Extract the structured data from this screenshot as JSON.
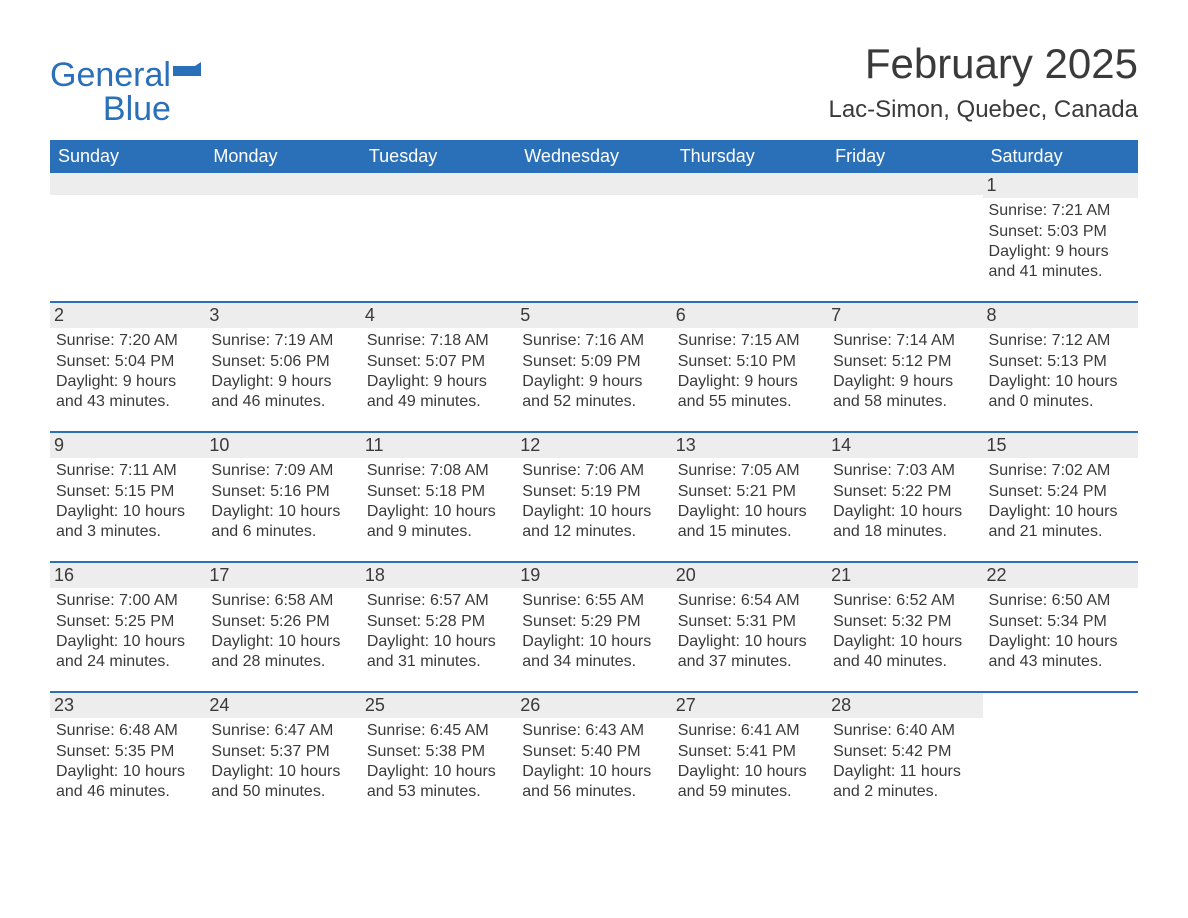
{
  "brand": {
    "line1": "General",
    "line2": "Blue",
    "color": "#2a70b8"
  },
  "title": "February 2025",
  "location": "Lac-Simon, Quebec, Canada",
  "colors": {
    "header_bg": "#2a70b8",
    "header_text": "#ffffff",
    "row_divider": "#2a70b8",
    "daynum_bg": "#ededed",
    "text": "#3a3a3a",
    "background": "#ffffff"
  },
  "fonts": {
    "title_pt": 42,
    "location_pt": 24,
    "dow_pt": 18,
    "body_pt": 16
  },
  "days_of_week": [
    "Sunday",
    "Monday",
    "Tuesday",
    "Wednesday",
    "Thursday",
    "Friday",
    "Saturday"
  ],
  "weeks": [
    [
      {
        "blank": true
      },
      {
        "blank": true
      },
      {
        "blank": true
      },
      {
        "blank": true
      },
      {
        "blank": true
      },
      {
        "blank": true
      },
      {
        "n": "1",
        "sunrise": "Sunrise: 7:21 AM",
        "sunset": "Sunset: 5:03 PM",
        "daylight": "Daylight: 9 hours and 41 minutes."
      }
    ],
    [
      {
        "n": "2",
        "sunrise": "Sunrise: 7:20 AM",
        "sunset": "Sunset: 5:04 PM",
        "daylight": "Daylight: 9 hours and 43 minutes."
      },
      {
        "n": "3",
        "sunrise": "Sunrise: 7:19 AM",
        "sunset": "Sunset: 5:06 PM",
        "daylight": "Daylight: 9 hours and 46 minutes."
      },
      {
        "n": "4",
        "sunrise": "Sunrise: 7:18 AM",
        "sunset": "Sunset: 5:07 PM",
        "daylight": "Daylight: 9 hours and 49 minutes."
      },
      {
        "n": "5",
        "sunrise": "Sunrise: 7:16 AM",
        "sunset": "Sunset: 5:09 PM",
        "daylight": "Daylight: 9 hours and 52 minutes."
      },
      {
        "n": "6",
        "sunrise": "Sunrise: 7:15 AM",
        "sunset": "Sunset: 5:10 PM",
        "daylight": "Daylight: 9 hours and 55 minutes."
      },
      {
        "n": "7",
        "sunrise": "Sunrise: 7:14 AM",
        "sunset": "Sunset: 5:12 PM",
        "daylight": "Daylight: 9 hours and 58 minutes."
      },
      {
        "n": "8",
        "sunrise": "Sunrise: 7:12 AM",
        "sunset": "Sunset: 5:13 PM",
        "daylight": "Daylight: 10 hours and 0 minutes."
      }
    ],
    [
      {
        "n": "9",
        "sunrise": "Sunrise: 7:11 AM",
        "sunset": "Sunset: 5:15 PM",
        "daylight": "Daylight: 10 hours and 3 minutes."
      },
      {
        "n": "10",
        "sunrise": "Sunrise: 7:09 AM",
        "sunset": "Sunset: 5:16 PM",
        "daylight": "Daylight: 10 hours and 6 minutes."
      },
      {
        "n": "11",
        "sunrise": "Sunrise: 7:08 AM",
        "sunset": "Sunset: 5:18 PM",
        "daylight": "Daylight: 10 hours and 9 minutes."
      },
      {
        "n": "12",
        "sunrise": "Sunrise: 7:06 AM",
        "sunset": "Sunset: 5:19 PM",
        "daylight": "Daylight: 10 hours and 12 minutes."
      },
      {
        "n": "13",
        "sunrise": "Sunrise: 7:05 AM",
        "sunset": "Sunset: 5:21 PM",
        "daylight": "Daylight: 10 hours and 15 minutes."
      },
      {
        "n": "14",
        "sunrise": "Sunrise: 7:03 AM",
        "sunset": "Sunset: 5:22 PM",
        "daylight": "Daylight: 10 hours and 18 minutes."
      },
      {
        "n": "15",
        "sunrise": "Sunrise: 7:02 AM",
        "sunset": "Sunset: 5:24 PM",
        "daylight": "Daylight: 10 hours and 21 minutes."
      }
    ],
    [
      {
        "n": "16",
        "sunrise": "Sunrise: 7:00 AM",
        "sunset": "Sunset: 5:25 PM",
        "daylight": "Daylight: 10 hours and 24 minutes."
      },
      {
        "n": "17",
        "sunrise": "Sunrise: 6:58 AM",
        "sunset": "Sunset: 5:26 PM",
        "daylight": "Daylight: 10 hours and 28 minutes."
      },
      {
        "n": "18",
        "sunrise": "Sunrise: 6:57 AM",
        "sunset": "Sunset: 5:28 PM",
        "daylight": "Daylight: 10 hours and 31 minutes."
      },
      {
        "n": "19",
        "sunrise": "Sunrise: 6:55 AM",
        "sunset": "Sunset: 5:29 PM",
        "daylight": "Daylight: 10 hours and 34 minutes."
      },
      {
        "n": "20",
        "sunrise": "Sunrise: 6:54 AM",
        "sunset": "Sunset: 5:31 PM",
        "daylight": "Daylight: 10 hours and 37 minutes."
      },
      {
        "n": "21",
        "sunrise": "Sunrise: 6:52 AM",
        "sunset": "Sunset: 5:32 PM",
        "daylight": "Daylight: 10 hours and 40 minutes."
      },
      {
        "n": "22",
        "sunrise": "Sunrise: 6:50 AM",
        "sunset": "Sunset: 5:34 PM",
        "daylight": "Daylight: 10 hours and 43 minutes."
      }
    ],
    [
      {
        "n": "23",
        "sunrise": "Sunrise: 6:48 AM",
        "sunset": "Sunset: 5:35 PM",
        "daylight": "Daylight: 10 hours and 46 minutes."
      },
      {
        "n": "24",
        "sunrise": "Sunrise: 6:47 AM",
        "sunset": "Sunset: 5:37 PM",
        "daylight": "Daylight: 10 hours and 50 minutes."
      },
      {
        "n": "25",
        "sunrise": "Sunrise: 6:45 AM",
        "sunset": "Sunset: 5:38 PM",
        "daylight": "Daylight: 10 hours and 53 minutes."
      },
      {
        "n": "26",
        "sunrise": "Sunrise: 6:43 AM",
        "sunset": "Sunset: 5:40 PM",
        "daylight": "Daylight: 10 hours and 56 minutes."
      },
      {
        "n": "27",
        "sunrise": "Sunrise: 6:41 AM",
        "sunset": "Sunset: 5:41 PM",
        "daylight": "Daylight: 10 hours and 59 minutes."
      },
      {
        "n": "28",
        "sunrise": "Sunrise: 6:40 AM",
        "sunset": "Sunset: 5:42 PM",
        "daylight": "Daylight: 11 hours and 2 minutes."
      },
      {
        "blank": true,
        "nobar": true
      }
    ]
  ]
}
